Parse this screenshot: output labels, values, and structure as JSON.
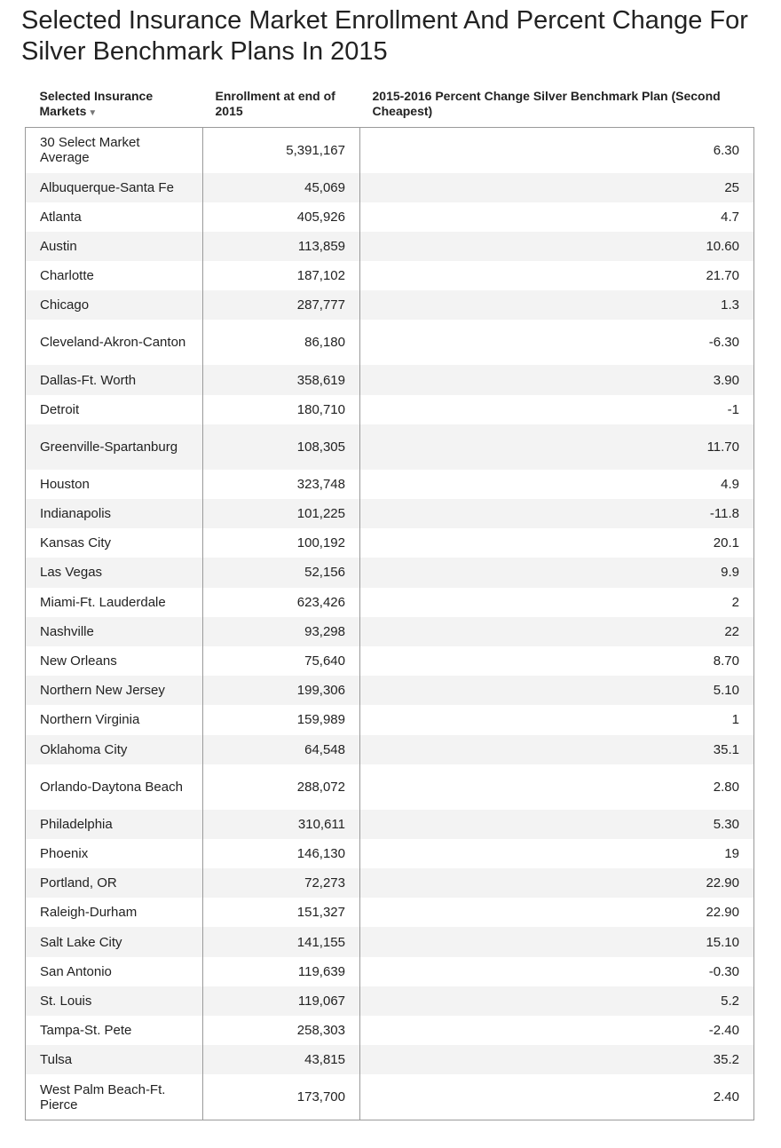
{
  "title": "Selected Insurance Market Enrollment And Percent Change For Silver Benchmark Plans In 2015",
  "table": {
    "headers": {
      "market": "Selected Insurance Markets",
      "sort_indicator": "▼",
      "enrollment": "Enrollment at end of 2015",
      "percent_change": "2015-2016 Percent Change Silver Benchmark Plan (Second Cheapest)"
    },
    "rows": [
      {
        "market": "30 Select Market Average",
        "enrollment": "5,391,167",
        "change": "6.30"
      },
      {
        "market": "Albuquerque-Santa Fe",
        "enrollment": "45,069",
        "change": "25"
      },
      {
        "market": "Atlanta",
        "enrollment": "405,926",
        "change": "4.7"
      },
      {
        "market": "Austin",
        "enrollment": "113,859",
        "change": "10.60"
      },
      {
        "market": "Charlotte",
        "enrollment": "187,102",
        "change": "21.70"
      },
      {
        "market": "Chicago",
        "enrollment": "287,777",
        "change": "1.3"
      },
      {
        "market": "Cleveland-Akron-Canton",
        "enrollment": "86,180",
        "change": "-6.30"
      },
      {
        "market": "Dallas-Ft. Worth",
        "enrollment": "358,619",
        "change": "3.90"
      },
      {
        "market": "Detroit",
        "enrollment": "180,710",
        "change": "-1"
      },
      {
        "market": "Greenville-Spartanburg",
        "enrollment": "108,305",
        "change": "11.70"
      },
      {
        "market": "Houston",
        "enrollment": "323,748",
        "change": "4.9"
      },
      {
        "market": "Indianapolis",
        "enrollment": "101,225",
        "change": "-11.8"
      },
      {
        "market": "Kansas City",
        "enrollment": "100,192",
        "change": "20.1"
      },
      {
        "market": "Las Vegas",
        "enrollment": "52,156",
        "change": "9.9"
      },
      {
        "market": "Miami-Ft. Lauderdale",
        "enrollment": "623,426",
        "change": "2"
      },
      {
        "market": "Nashville",
        "enrollment": "93,298",
        "change": "22"
      },
      {
        "market": "New Orleans",
        "enrollment": "75,640",
        "change": "8.70"
      },
      {
        "market": "Northern New Jersey",
        "enrollment": "199,306",
        "change": "5.10"
      },
      {
        "market": "Northern Virginia",
        "enrollment": "159,989",
        "change": "1"
      },
      {
        "market": "Oklahoma City",
        "enrollment": "64,548",
        "change": "35.1"
      },
      {
        "market": "Orlando-Daytona Beach",
        "enrollment": "288,072",
        "change": "2.80"
      },
      {
        "market": "Philadelphia",
        "enrollment": "310,611",
        "change": "5.30"
      },
      {
        "market": "Phoenix",
        "enrollment": "146,130",
        "change": "19"
      },
      {
        "market": "Portland, OR",
        "enrollment": "72,273",
        "change": "22.90"
      },
      {
        "market": "Raleigh-Durham",
        "enrollment": "151,327",
        "change": "22.90"
      },
      {
        "market": "Salt Lake City",
        "enrollment": "141,155",
        "change": "15.10"
      },
      {
        "market": "San Antonio",
        "enrollment": "119,639",
        "change": "-0.30"
      },
      {
        "market": "St. Louis",
        "enrollment": "119,067",
        "change": "5.2"
      },
      {
        "market": "Tampa-St. Pete",
        "enrollment": "258,303",
        "change": "-2.40"
      },
      {
        "market": "Tulsa",
        "enrollment": "43,815",
        "change": "35.2"
      },
      {
        "market": "West Palm Beach-Ft. Pierce",
        "enrollment": "173,700",
        "change": "2.40"
      }
    ]
  }
}
